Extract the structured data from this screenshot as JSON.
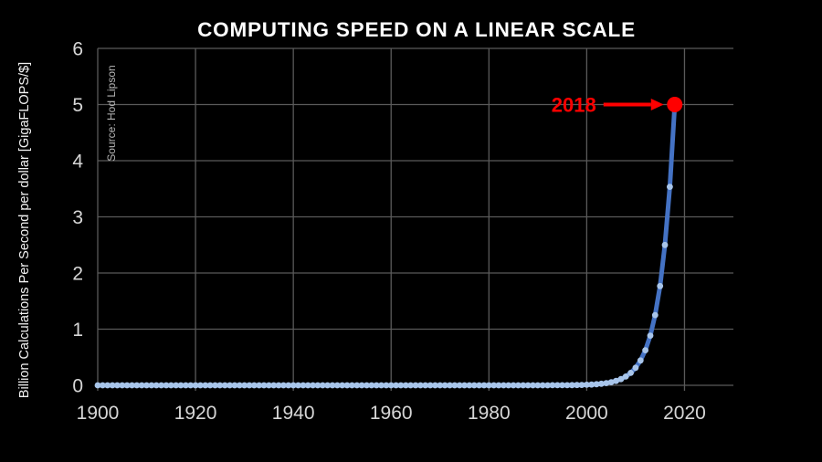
{
  "page": {
    "background": "#000000"
  },
  "chart_data": {
    "type": "line",
    "title": "COMPUTING SPEED ON A LINEAR SCALE",
    "xlabel": "",
    "ylabel": "Billion Calculations Per Second per dollar [GigaFLOPS/$]",
    "source_note": "Source: Hod Lipson",
    "series_name": "GigaFLOPS per dollar",
    "x_start": 1900,
    "x_step": 1,
    "values": [
      0,
      0,
      0,
      0,
      0,
      0,
      0,
      0,
      0,
      0,
      0,
      0,
      0,
      0,
      0,
      0,
      0,
      0,
      0,
      0,
      0,
      0,
      0,
      0,
      0,
      0,
      0,
      0,
      0,
      0,
      0,
      0,
      0,
      0,
      0,
      0,
      0,
      0,
      0,
      0,
      0,
      0,
      0,
      0,
      0,
      0,
      0,
      0,
      0,
      0,
      0,
      0,
      0,
      0,
      0,
      0,
      0,
      0,
      0,
      0,
      0,
      0,
      0,
      0,
      0,
      0,
      0,
      0,
      0,
      0,
      0,
      0,
      0,
      0,
      0,
      0,
      0,
      0,
      0,
      0,
      0,
      0,
      0,
      0,
      0,
      0,
      0,
      0,
      0,
      0,
      0,
      0,
      0.0006,
      0.0009,
      0.0012,
      0.0017,
      0.0024,
      0.0035,
      0.0049,
      0.0069,
      0.0098,
      0.0138,
      0.0195,
      0.0276,
      0.0391,
      0.0552,
      0.0781,
      0.1105,
      0.1563,
      0.221,
      0.3125,
      0.4419,
      0.625,
      0.8839,
      1.25,
      1.7678,
      2.5,
      3.5355,
      5
    ],
    "x_ticks": [
      1900,
      1920,
      1940,
      1960,
      1980,
      2000,
      2020
    ],
    "y_ticks": [
      0,
      1,
      2,
      3,
      4,
      5,
      6
    ],
    "xlim": [
      1900,
      2030
    ],
    "ylim": [
      0,
      6
    ],
    "grid": true,
    "legend": "none",
    "marker": "circle",
    "annotation": {
      "text": "2018",
      "x": 2018,
      "y": 5
    },
    "colors": {
      "background": "#000000",
      "grid": "#5a5a5a",
      "line": "#4472c4",
      "marker": "#a8c5ea",
      "annotation": "#ff0000",
      "title_text": "#ffffff",
      "tick_text": "#d6d6d6",
      "source_text": "#b5b5b5"
    }
  }
}
